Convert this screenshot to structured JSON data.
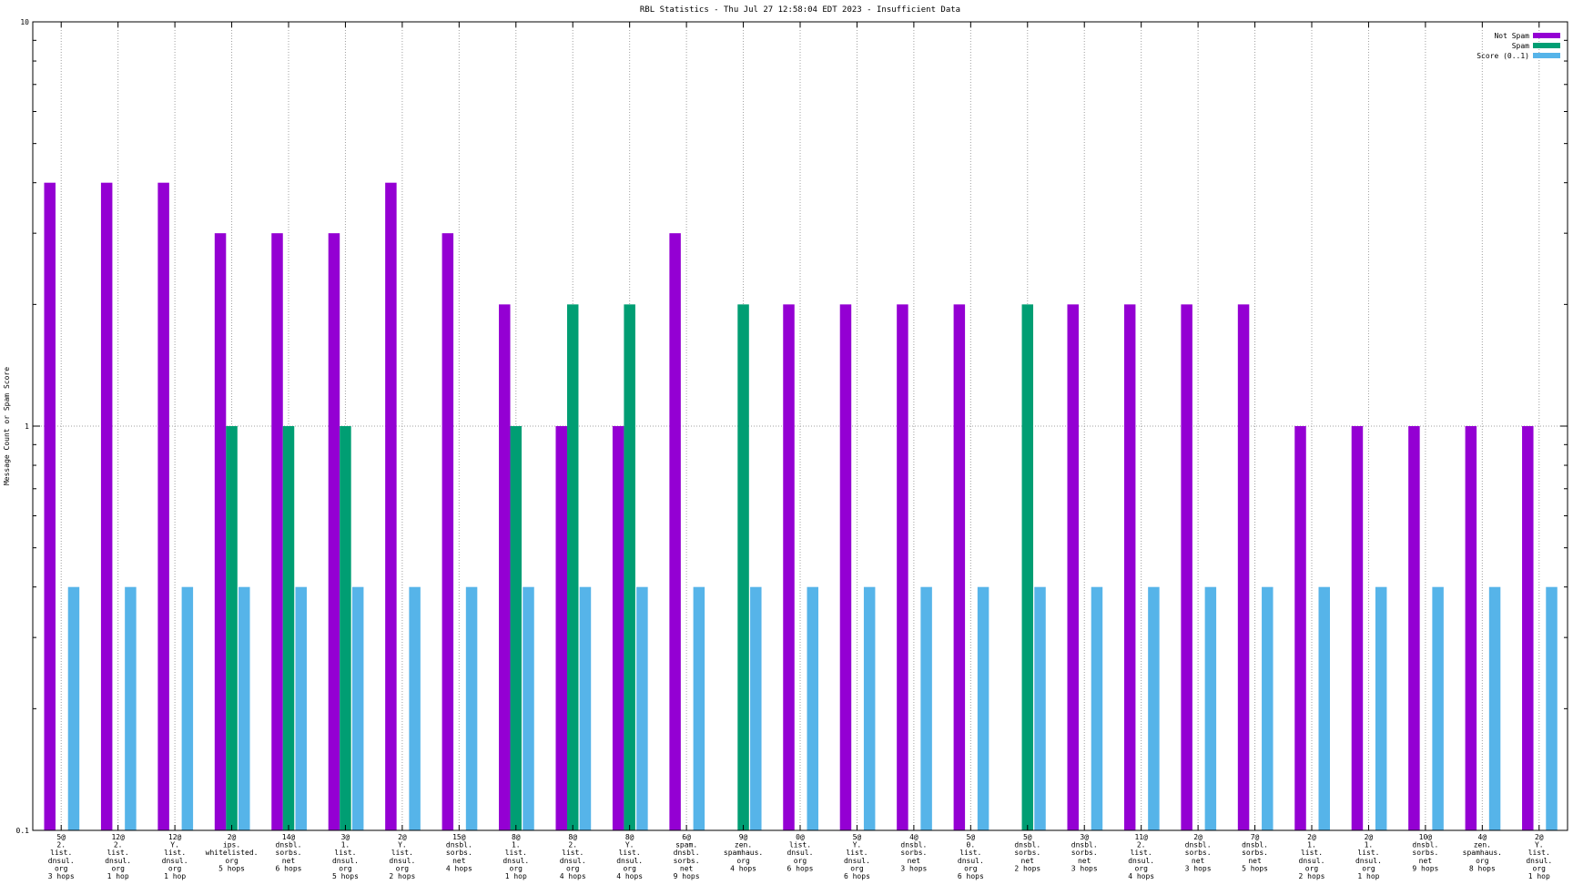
{
  "chart_data": {
    "type": "bar",
    "title": "RBL Statistics - Thu Jul 27 12:58:04 EDT 2023 - Insufficient Data",
    "xlabel": "",
    "ylabel": "Message Count or Spam Score",
    "yscale": "log",
    "ylim": [
      0.1,
      10
    ],
    "yticks": [
      "0.1",
      "1",
      "10"
    ],
    "grid": true,
    "legend_position": "top-right",
    "categories": [
      [
        "5@",
        "2.",
        "list.",
        "dnsul.",
        "org",
        "3 hops"
      ],
      [
        "12@",
        "2.",
        "list.",
        "dnsul.",
        "org",
        "1 hop"
      ],
      [
        "12@",
        "Y.",
        "list.",
        "dnsul.",
        "org",
        "1 hop"
      ],
      [
        "2@",
        "ips.",
        "whitelisted.",
        "org",
        "5 hops"
      ],
      [
        "14@",
        "dnsbl.",
        "sorbs.",
        "net",
        "6 hops"
      ],
      [
        "3@",
        "1.",
        "list.",
        "dnsul.",
        "org",
        "5 hops"
      ],
      [
        "2@",
        "Y.",
        "list.",
        "dnsul.",
        "org",
        "2 hops"
      ],
      [
        "15@",
        "dnsbl.",
        "sorbs.",
        "net",
        "4 hops"
      ],
      [
        "8@",
        "1.",
        "list.",
        "dnsul.",
        "org",
        "1 hop"
      ],
      [
        "8@",
        "2.",
        "list.",
        "dnsul.",
        "org",
        "4 hops"
      ],
      [
        "8@",
        "Y.",
        "list.",
        "dnsul.",
        "org",
        "4 hops"
      ],
      [
        "6@",
        "spam.",
        "dnsbl.",
        "sorbs.",
        "net",
        "9 hops"
      ],
      [
        "9@",
        "zen.",
        "spamhaus.",
        "org",
        "4 hops"
      ],
      [
        "0@",
        "list.",
        "dnsul.",
        "org",
        "6 hops"
      ],
      [
        "5@",
        "Y.",
        "list.",
        "dnsul.",
        "org",
        "6 hops"
      ],
      [
        "4@",
        "dnsbl.",
        "sorbs.",
        "net",
        "3 hops"
      ],
      [
        "5@",
        "0.",
        "list.",
        "dnsul.",
        "org",
        "6 hops"
      ],
      [
        "5@",
        "dnsbl.",
        "sorbs.",
        "net",
        "2 hops"
      ],
      [
        "3@",
        "dnsbl.",
        "sorbs.",
        "net",
        "3 hops"
      ],
      [
        "11@",
        "2.",
        "list.",
        "dnsul.",
        "org",
        "4 hops"
      ],
      [
        "2@",
        "dnsbl.",
        "sorbs.",
        "net",
        "3 hops"
      ],
      [
        "7@",
        "dnsbl.",
        "sorbs.",
        "net",
        "5 hops"
      ],
      [
        "2@",
        "1.",
        "list.",
        "dnsul.",
        "org",
        "2 hops"
      ],
      [
        "2@",
        "1.",
        "list.",
        "dnsul.",
        "org",
        "1 hop"
      ],
      [
        "10@",
        "dnsbl.",
        "sorbs.",
        "net",
        "9 hops"
      ],
      [
        "4@",
        "zen.",
        "spamhaus.",
        "org",
        "8 hops"
      ],
      [
        "2@",
        "Y.",
        "list.",
        "dnsul.",
        "org",
        "1 hop"
      ]
    ],
    "series": [
      {
        "name": "Not Spam",
        "color": "#9400d3",
        "values": [
          4,
          4,
          4,
          3,
          3,
          3,
          4,
          3,
          2,
          1,
          1,
          3,
          null,
          2,
          2,
          2,
          2,
          null,
          2,
          2,
          2,
          2,
          1,
          1,
          1,
          1,
          1
        ]
      },
      {
        "name": "Spam",
        "color": "#009e73",
        "values": [
          null,
          null,
          null,
          1,
          1,
          1,
          null,
          null,
          1,
          2,
          2,
          null,
          2,
          null,
          null,
          null,
          null,
          2,
          null,
          null,
          null,
          null,
          null,
          null,
          null,
          null,
          null
        ]
      },
      {
        "name": "Score (0..1)",
        "color": "#56b4e9",
        "values": [
          0.4,
          0.4,
          0.4,
          0.4,
          0.4,
          0.4,
          0.4,
          0.4,
          0.4,
          0.4,
          0.4,
          0.4,
          0.4,
          0.4,
          0.4,
          0.4,
          0.4,
          0.4,
          0.4,
          0.4,
          0.4,
          0.4,
          0.4,
          0.4,
          0.4,
          0.4,
          0.4
        ]
      }
    ]
  }
}
